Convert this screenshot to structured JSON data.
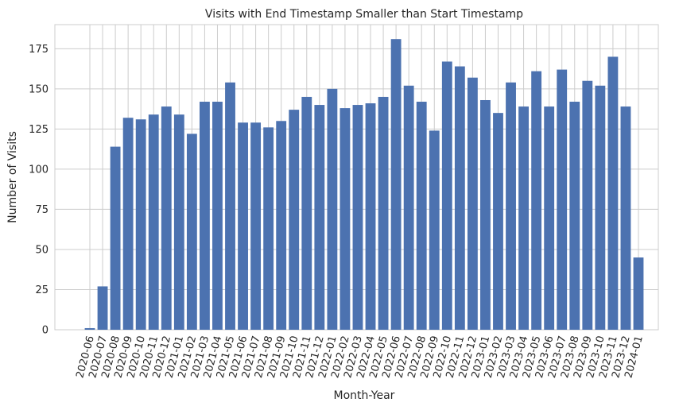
{
  "chart_data": {
    "type": "bar",
    "title": "Visits with End Timestamp Smaller than Start Timestamp",
    "xlabel": "Month-Year",
    "ylabel": "Number of Visits",
    "ylim": [
      0,
      190
    ],
    "yticks": [
      0,
      25,
      50,
      75,
      100,
      125,
      150,
      175
    ],
    "grid": true,
    "bar_color": "#4c72b0",
    "categories": [
      "2020-06",
      "2020-07",
      "2020-08",
      "2020-09",
      "2020-10",
      "2020-11",
      "2020-12",
      "2021-01",
      "2021-02",
      "2021-03",
      "2021-04",
      "2021-05",
      "2021-06",
      "2021-07",
      "2021-08",
      "2021-09",
      "2021-10",
      "2021-11",
      "2021-12",
      "2022-01",
      "2022-02",
      "2022-03",
      "2022-04",
      "2022-05",
      "2022-06",
      "2022-07",
      "2022-08",
      "2022-09",
      "2022-10",
      "2022-11",
      "2022-12",
      "2023-01",
      "2023-02",
      "2023-03",
      "2023-04",
      "2023-05",
      "2023-06",
      "2023-07",
      "2023-08",
      "2023-09",
      "2023-10",
      "2023-11",
      "2023-12",
      "2024-01"
    ],
    "values": [
      1,
      27,
      114,
      132,
      131,
      134,
      139,
      134,
      122,
      142,
      142,
      154,
      129,
      129,
      126,
      130,
      137,
      145,
      140,
      150,
      138,
      140,
      141,
      145,
      181,
      152,
      142,
      124,
      167,
      164,
      157,
      143,
      135,
      154,
      139,
      161,
      139,
      162,
      142,
      155,
      152,
      170,
      139,
      45
    ]
  }
}
